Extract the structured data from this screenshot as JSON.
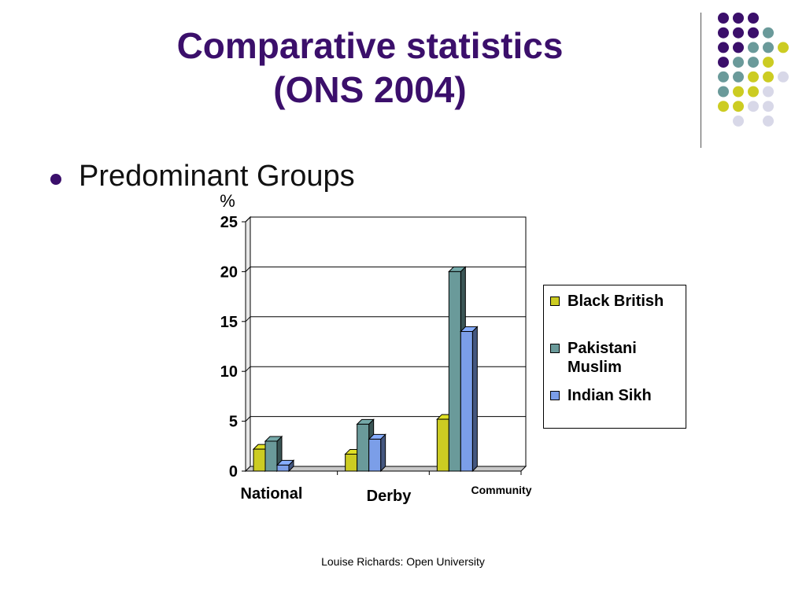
{
  "slide": {
    "title_line1": "Comparative statistics",
    "title_line2": "(ONS 2004)",
    "bullet": "Predominant Groups",
    "footer": "Louise Richards: Open University"
  },
  "colors": {
    "title": "#3b0f6b",
    "dot_purple": "#3b0f6b",
    "dot_teal": "#6a9a9a",
    "dot_yellow": "#cccc22",
    "dot_lavender": "#d8d8e8"
  },
  "decoration": {
    "dot_grid_rows": [
      [
        "purple",
        "purple",
        "purple",
        "",
        ""
      ],
      [
        "purple",
        "purple",
        "purple",
        "teal",
        ""
      ],
      [
        "purple",
        "purple",
        "teal",
        "teal",
        "yellow"
      ],
      [
        "purple",
        "teal",
        "teal",
        "yellow",
        ""
      ],
      [
        "teal",
        "teal",
        "yellow",
        "yellow",
        "lavender"
      ],
      [
        "teal",
        "yellow",
        "yellow",
        "lavender",
        ""
      ],
      [
        "yellow",
        "yellow",
        "lavender",
        "lavender",
        ""
      ],
      [
        "",
        "lavender",
        "",
        "lavender",
        ""
      ]
    ]
  },
  "chart_data": {
    "type": "bar",
    "title": "",
    "xlabel": "",
    "ylabel": "%",
    "ylim": [
      0,
      25
    ],
    "yticks": [
      0,
      5,
      10,
      15,
      20,
      25
    ],
    "grid": true,
    "legend_position": "right",
    "categories": [
      "National",
      "Derby",
      "Community"
    ],
    "series": [
      {
        "name": "Black British",
        "color": "#cccc22",
        "values": [
          2.2,
          1.7,
          5.2
        ]
      },
      {
        "name": "Pakistani Muslim",
        "color": "#6a9a9a",
        "values": [
          3.0,
          4.7,
          20.0
        ]
      },
      {
        "name": "Indian Sikh",
        "color": "#7b9ee8",
        "values": [
          0.6,
          3.2,
          14.0
        ]
      }
    ]
  }
}
